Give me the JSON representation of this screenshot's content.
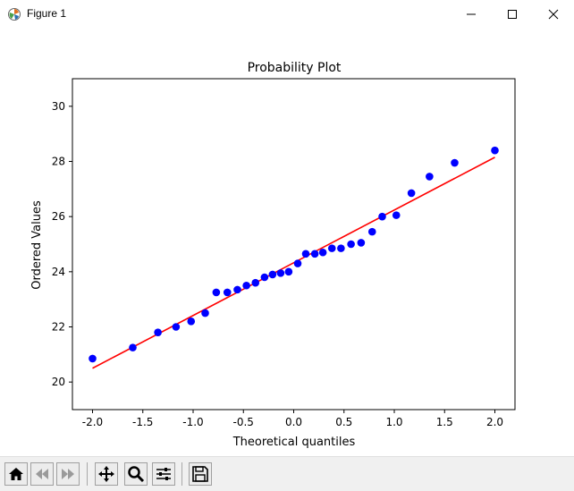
{
  "window": {
    "title": "Figure 1",
    "controls": [
      "minimize",
      "maximize",
      "close"
    ]
  },
  "toolbar": {
    "buttons": [
      "home-icon",
      "back-icon",
      "forward-icon",
      "pan-icon",
      "zoom-icon",
      "configure-subplots-icon",
      "save-icon"
    ]
  },
  "chart_data": {
    "type": "scatter",
    "title": "Probability Plot",
    "xlabel": "Theoretical quantiles",
    "ylabel": "Ordered Values",
    "xlim": [
      -2.2,
      2.2
    ],
    "ylim": [
      19,
      31
    ],
    "xticks": [
      "-2.0",
      "-1.5",
      "-1.0",
      "-0.5",
      "0.0",
      "0.5",
      "1.0",
      "1.5",
      "2.0"
    ],
    "xtick_values": [
      -2.0,
      -1.5,
      -1.0,
      -0.5,
      0.0,
      0.5,
      1.0,
      1.5,
      2.0
    ],
    "yticks": [
      "20",
      "22",
      "24",
      "26",
      "28",
      "30"
    ],
    "ytick_values": [
      20,
      22,
      24,
      26,
      28,
      30
    ],
    "grid": false,
    "series": [
      {
        "kind": "points",
        "color": "#0000ff",
        "x": [
          -2.0,
          -1.6,
          -1.35,
          -1.17,
          -1.02,
          -0.88,
          -0.77,
          -0.66,
          -0.56,
          -0.47,
          -0.38,
          -0.29,
          -0.21,
          -0.13,
          -0.05,
          0.04,
          0.12,
          0.21,
          0.29,
          0.38,
          0.47,
          0.57,
          0.67,
          0.78,
          0.88,
          1.02,
          1.17,
          1.35,
          1.6,
          2.0
        ],
        "y": [
          20.85,
          21.25,
          21.8,
          22.0,
          22.2,
          22.5,
          23.25,
          23.25,
          23.35,
          23.5,
          23.6,
          23.8,
          23.9,
          23.95,
          24.0,
          24.3,
          24.65,
          24.65,
          24.7,
          24.85,
          24.85,
          25.0,
          25.05,
          25.45,
          26.0,
          26.05,
          26.85,
          27.45,
          27.95,
          28.4
        ]
      },
      {
        "kind": "fit-line",
        "color": "#ff0000",
        "x": [
          -2.0,
          2.0
        ],
        "y": [
          20.5,
          28.15
        ]
      }
    ]
  }
}
